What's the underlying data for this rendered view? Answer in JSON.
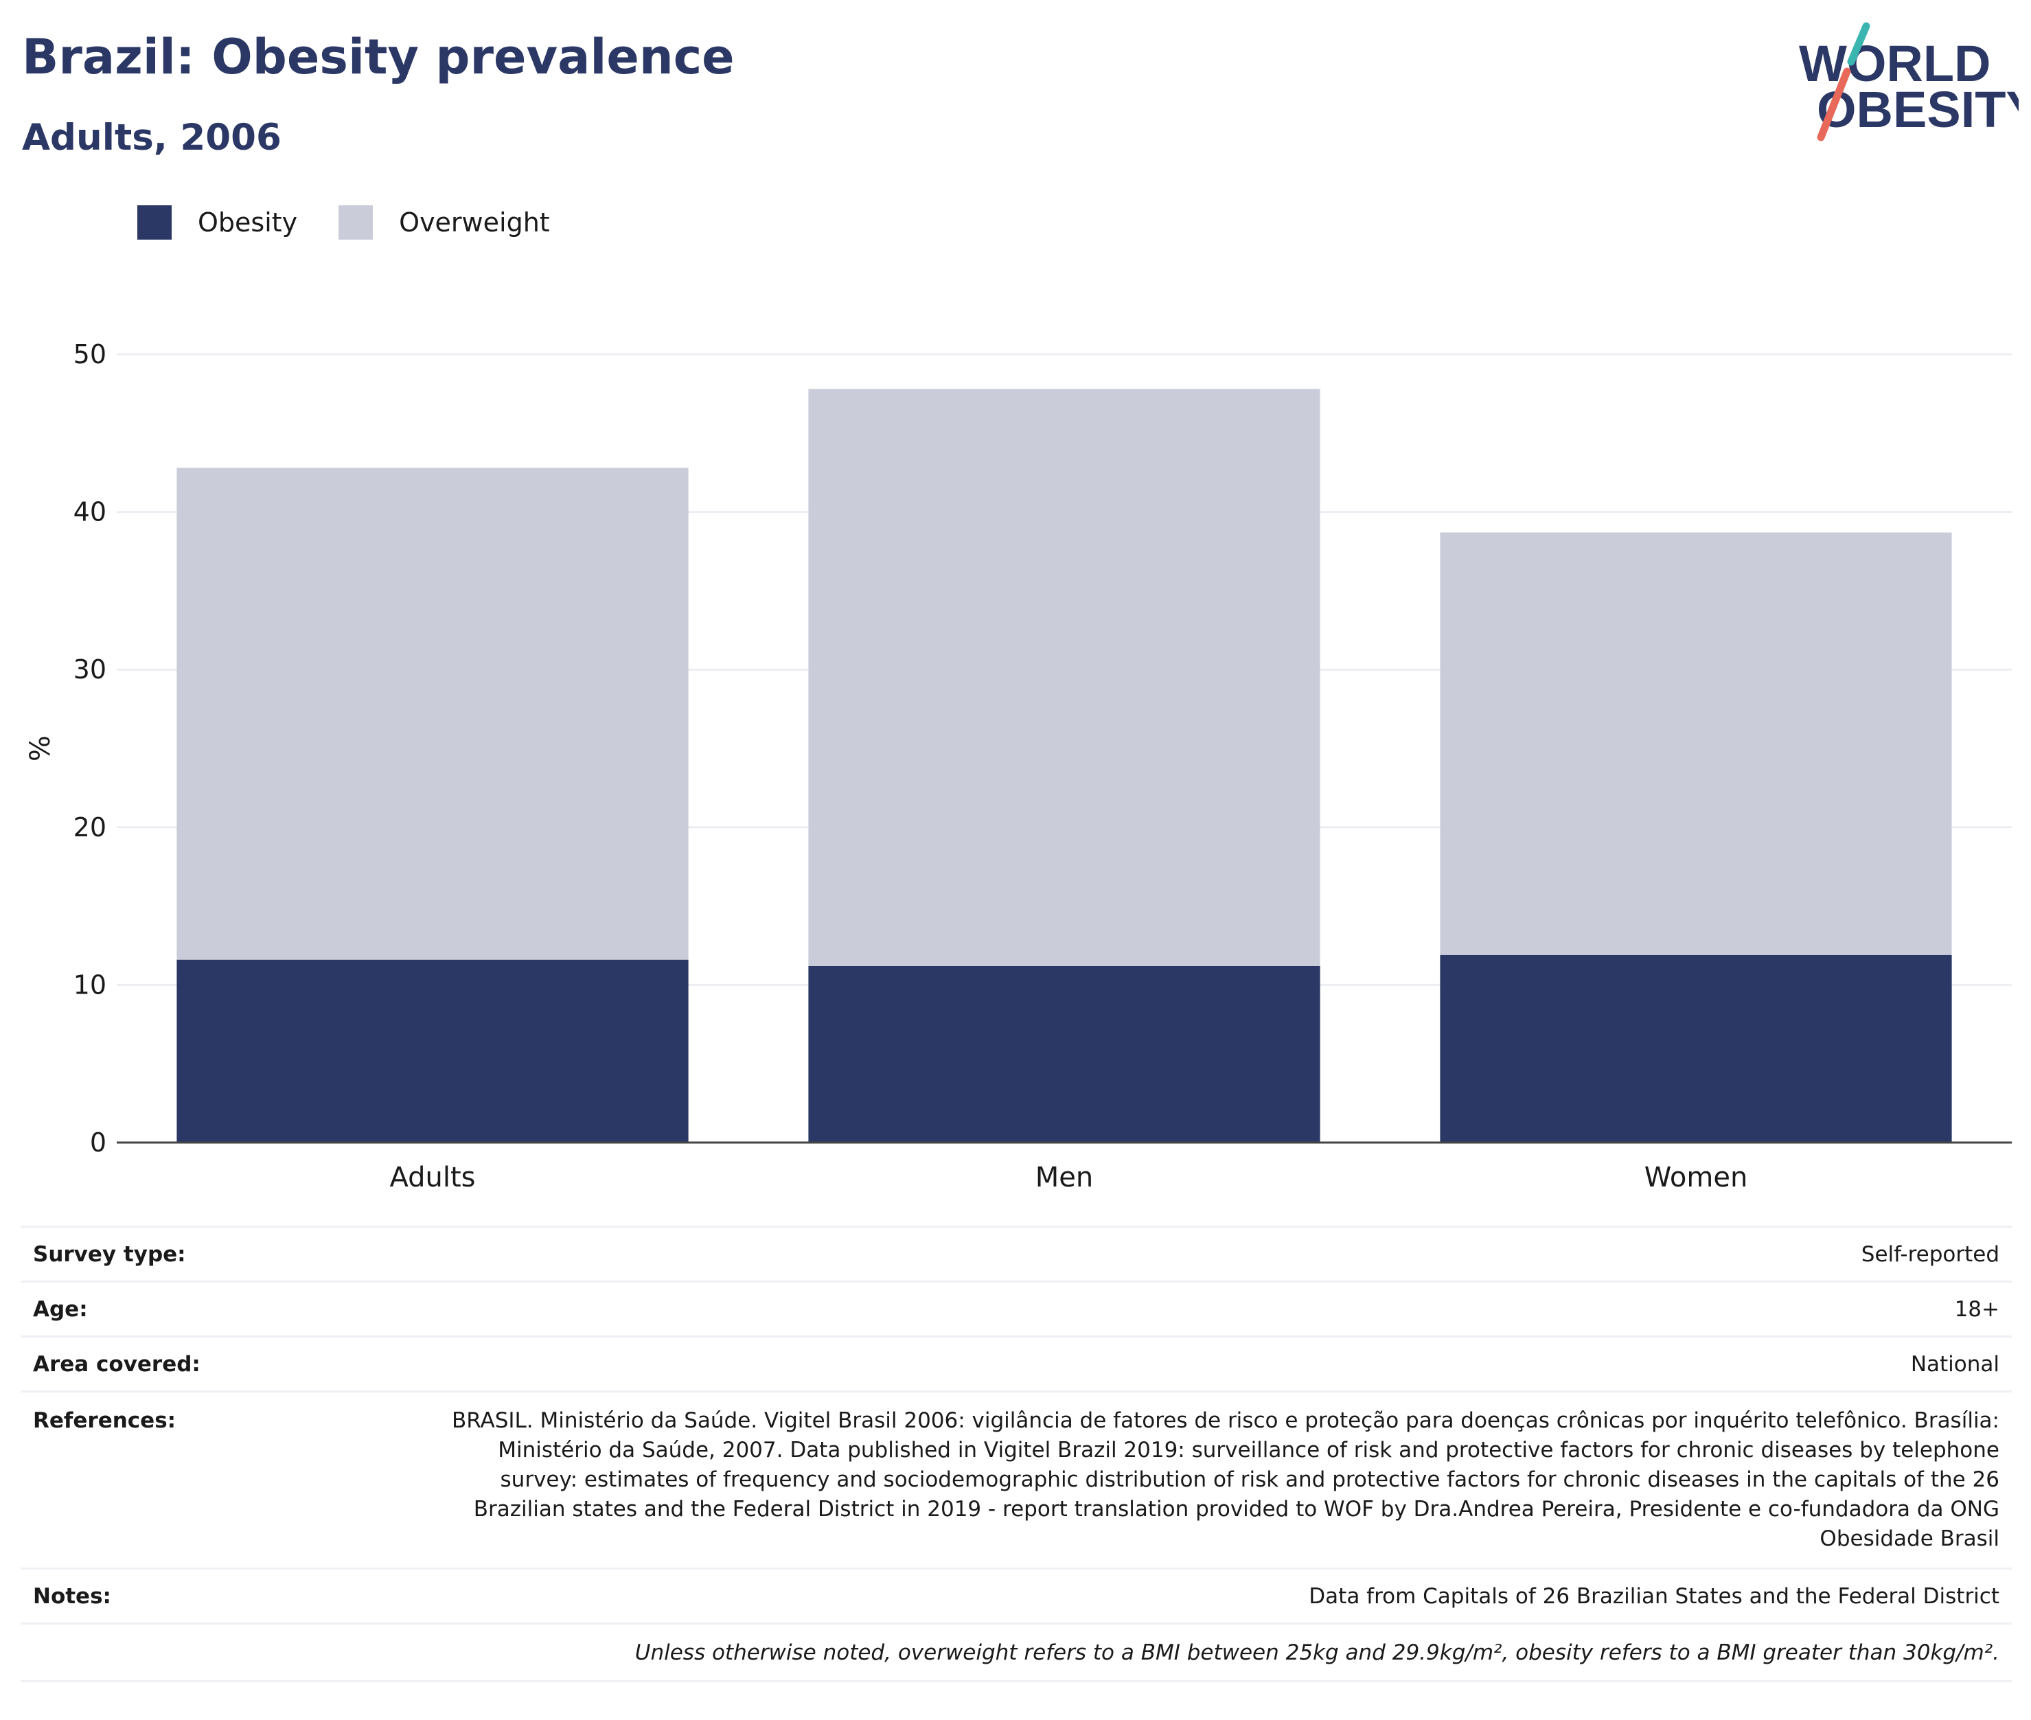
{
  "header": {
    "title": "Brazil: Obesity prevalence",
    "subtitle": "Adults, 2006"
  },
  "logo": {
    "line1": "WORLD",
    "line2": "OBESITY",
    "colors": {
      "text": "#2b3764",
      "accent_teal": "#3ab5b0",
      "accent_coral": "#e8685a"
    }
  },
  "legend": {
    "items": [
      {
        "label": "Obesity",
        "color": "#2b3764"
      },
      {
        "label": "Overweight",
        "color": "#cacdd9"
      }
    ]
  },
  "chart_data": {
    "type": "bar",
    "stacked": true,
    "categories": [
      "Adults",
      "Men",
      "Women"
    ],
    "series": [
      {
        "name": "Obesity",
        "values": [
          11.6,
          11.2,
          11.9
        ],
        "color": "#2b3764"
      },
      {
        "name": "Overweight",
        "values": [
          31.2,
          36.6,
          26.8
        ],
        "color": "#cacdd9"
      }
    ],
    "ylabel": "%",
    "ylim": [
      0,
      50
    ],
    "yticks": [
      0,
      10,
      20,
      30,
      40,
      50
    ],
    "grid": true,
    "legend_position": "top-left"
  },
  "info": {
    "rows": [
      {
        "label": "Survey type:",
        "value": "Self-reported"
      },
      {
        "label": "Age:",
        "value": "18+"
      },
      {
        "label": "Area covered:",
        "value": "National"
      },
      {
        "label": "References:",
        "value": "BRASIL. Ministério da Saúde. Vigitel Brasil 2006: vigilância de fatores de risco e proteção para doenças crônicas por inquérito telefônico. Brasília: Ministério da Saúde, 2007. Data published in Vigitel Brazil 2019: surveillance of risk and protective factors for chronic diseases by telephone survey: estimates of frequency and sociodemographic distribution of risk and protective factors for chronic diseases in the capitals of the 26 Brazilian states and the Federal District in 2019 - report translation provided to WOF by Dra.Andrea Pereira, Presidente e co-fundadora da ONG Obesidade Brasil"
      },
      {
        "label": "Notes:",
        "value": "Data from Capitals of 26 Brazilian States and the Federal District"
      }
    ],
    "footnote": "Unless otherwise noted, overweight refers to a BMI between 25kg and 29.9kg/m², obesity refers to a BMI greater than 30kg/m²."
  }
}
